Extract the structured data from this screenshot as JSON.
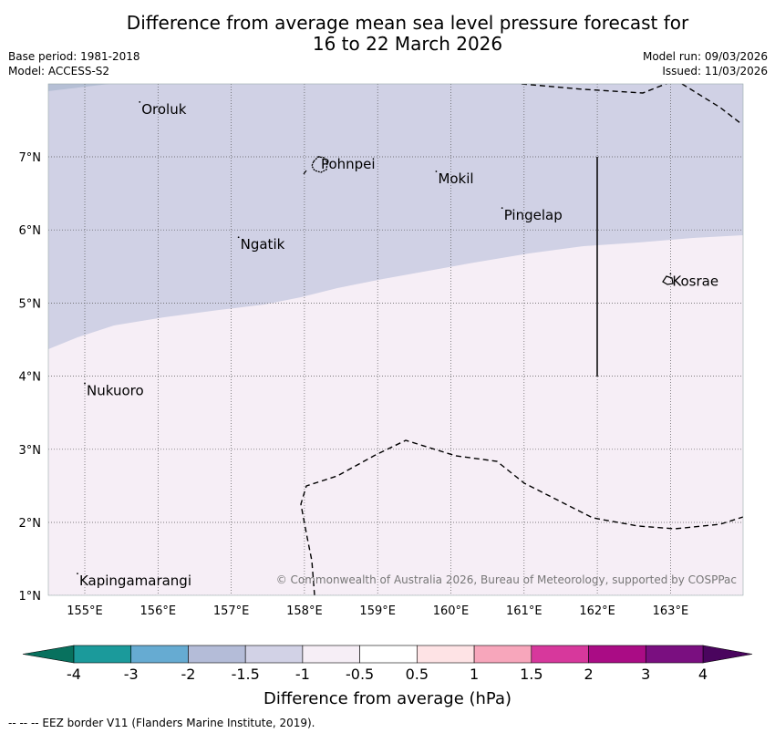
{
  "title": {
    "line1": "Difference from average mean sea level pressure forecast for",
    "line2": "16 to 22 March 2026"
  },
  "meta": {
    "base_period": "Base period: 1981-2018",
    "model": "Model: ACCESS-S2",
    "model_run": "Model run: 09/03/2026",
    "issued": "Issued: 11/03/2026"
  },
  "axes": {
    "lon_labels": [
      "155°E",
      "156°E",
      "157°E",
      "158°E",
      "159°E",
      "160°E",
      "161°E",
      "162°E",
      "163°E"
    ],
    "lat_labels": [
      "7°N",
      "6°N",
      "5°N",
      "4°N",
      "3°N",
      "2°N",
      "1°N"
    ]
  },
  "places": [
    {
      "name": "Oroluk",
      "lon": 155.75,
      "lat": 7.65
    },
    {
      "name": "Pohnpei",
      "lon": 158.2,
      "lat": 6.9
    },
    {
      "name": "Mokil",
      "lon": 159.8,
      "lat": 6.7
    },
    {
      "name": "Pingelap",
      "lon": 160.7,
      "lat": 6.2
    },
    {
      "name": "Ngatik",
      "lon": 157.1,
      "lat": 5.8
    },
    {
      "name": "Kosrae",
      "lon": 163.0,
      "lat": 5.3
    },
    {
      "name": "Nukuoro",
      "lon": 155.0,
      "lat": 3.8
    },
    {
      "name": "Kapingamarangi",
      "lon": 154.9,
      "lat": 1.2
    }
  ],
  "copyright": "© Commonwealth of Australia 2026, Bureau of Meteorology, supported by COSPPac",
  "colorbar": {
    "title": "Difference from average (hPa)",
    "labels": [
      "-4",
      "-3",
      "-2",
      "-1.5",
      "-1",
      "-0.5",
      "0.5",
      "1",
      "1.5",
      "2",
      "3",
      "4"
    ],
    "colors": [
      "#1b9a9b",
      "#66abd2",
      "#b4bcd8",
      "#d2d2e6",
      "#f6eef6",
      "#ffffff",
      "#fee3e5",
      "#f7a6bb",
      "#d7389c",
      "#aa0c85",
      "#7a0f80"
    ],
    "under_color": "#08715e",
    "over_color": "#4a055e"
  },
  "map_colors": {
    "lavender": "#d0d1e5",
    "pale_pink": "#f6eef6",
    "corner_blue": "#b5bfd5"
  },
  "footer": "--  --  -- EEZ border V11 (Flanders Marine Institute, 2019)."
}
